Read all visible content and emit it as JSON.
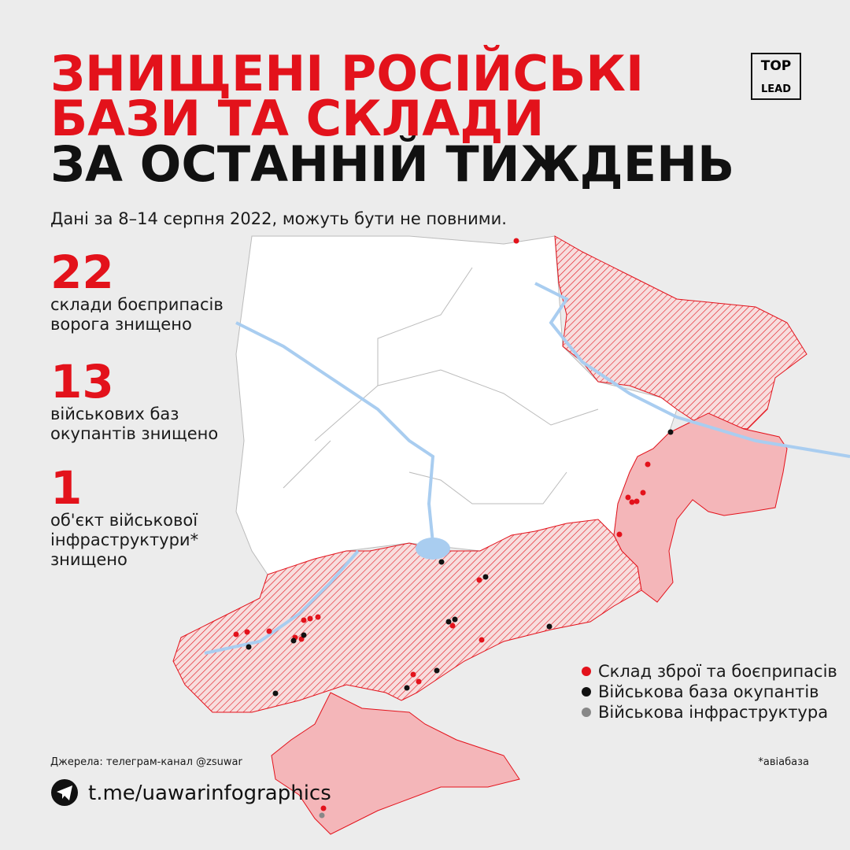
{
  "header": {
    "title_lines": [
      "ЗНИЩЕНІ РОСІЙСЬКІ",
      "БАЗИ ТА СКЛАДИ",
      "ЗА ОСТАННІЙ ТИЖДЕНЬ"
    ],
    "subtitle": "Дані за 8–14 серпня 2022, можуть бути не повними."
  },
  "logo": {
    "top": "TOP",
    "bottom": "LEAD"
  },
  "stats": [
    {
      "value": 22,
      "lines": [
        "склади боєприпасів",
        "ворога знищено"
      ]
    },
    {
      "value": 13,
      "lines": [
        "військових баз",
        "окупантів знищено"
      ]
    },
    {
      "value": 1,
      "lines": [
        "об'єкт військової",
        "інфраструктури*",
        "знищено"
      ]
    }
  ],
  "legend": [
    "Склад зброї та боєприпасів",
    "Військова база окупантів",
    "Військова інфраструктура"
  ],
  "source": "Джерела: телеграм-канал @zsuwar",
  "footnote": "*авіабаза",
  "link": "t.me/uawarinfographics"
}
